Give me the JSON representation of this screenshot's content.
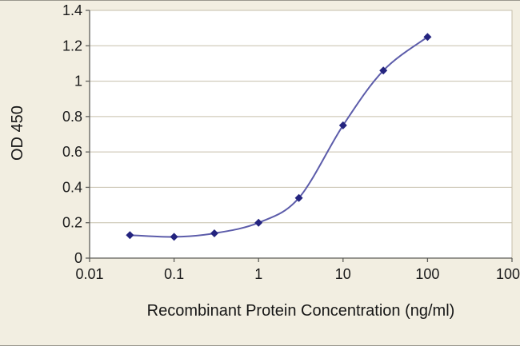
{
  "chart_data": {
    "type": "line",
    "title": "",
    "xlabel": "Recombinant Protein Concentration (ng/ml)",
    "ylabel": "OD 450",
    "x_scale": "log",
    "xlim": [
      0.01,
      1000
    ],
    "ylim": [
      0,
      1.4
    ],
    "x_ticks": [
      0.01,
      0.1,
      1,
      10,
      100,
      1000
    ],
    "x_tick_labels": [
      "0.01",
      "0.1",
      "1",
      "10",
      "100",
      "1000"
    ],
    "y_ticks": [
      0,
      0.2,
      0.4,
      0.6,
      0.8,
      1,
      1.2,
      1.4
    ],
    "y_tick_labels": [
      "0",
      "0.2",
      "0.4",
      "0.6",
      "0.8",
      "1",
      "1.2",
      "1.4"
    ],
    "grid": "horizontal",
    "legend": "none",
    "series": [
      {
        "name": "OD 450",
        "x": [
          0.03,
          0.1,
          0.3,
          1,
          3,
          10,
          30,
          100
        ],
        "y": [
          0.13,
          0.12,
          0.14,
          0.2,
          0.34,
          0.75,
          1.06,
          1.25
        ],
        "marker": "diamond",
        "smooth": true,
        "line_color": "#5c5caa",
        "marker_color": "#24247f"
      }
    ],
    "colors": {
      "background": "#f2eee1",
      "plot_background": "#ffffff",
      "gridline": "#c6bfab",
      "axis": "#5f5f5a",
      "text": "#1b1b1b"
    }
  }
}
